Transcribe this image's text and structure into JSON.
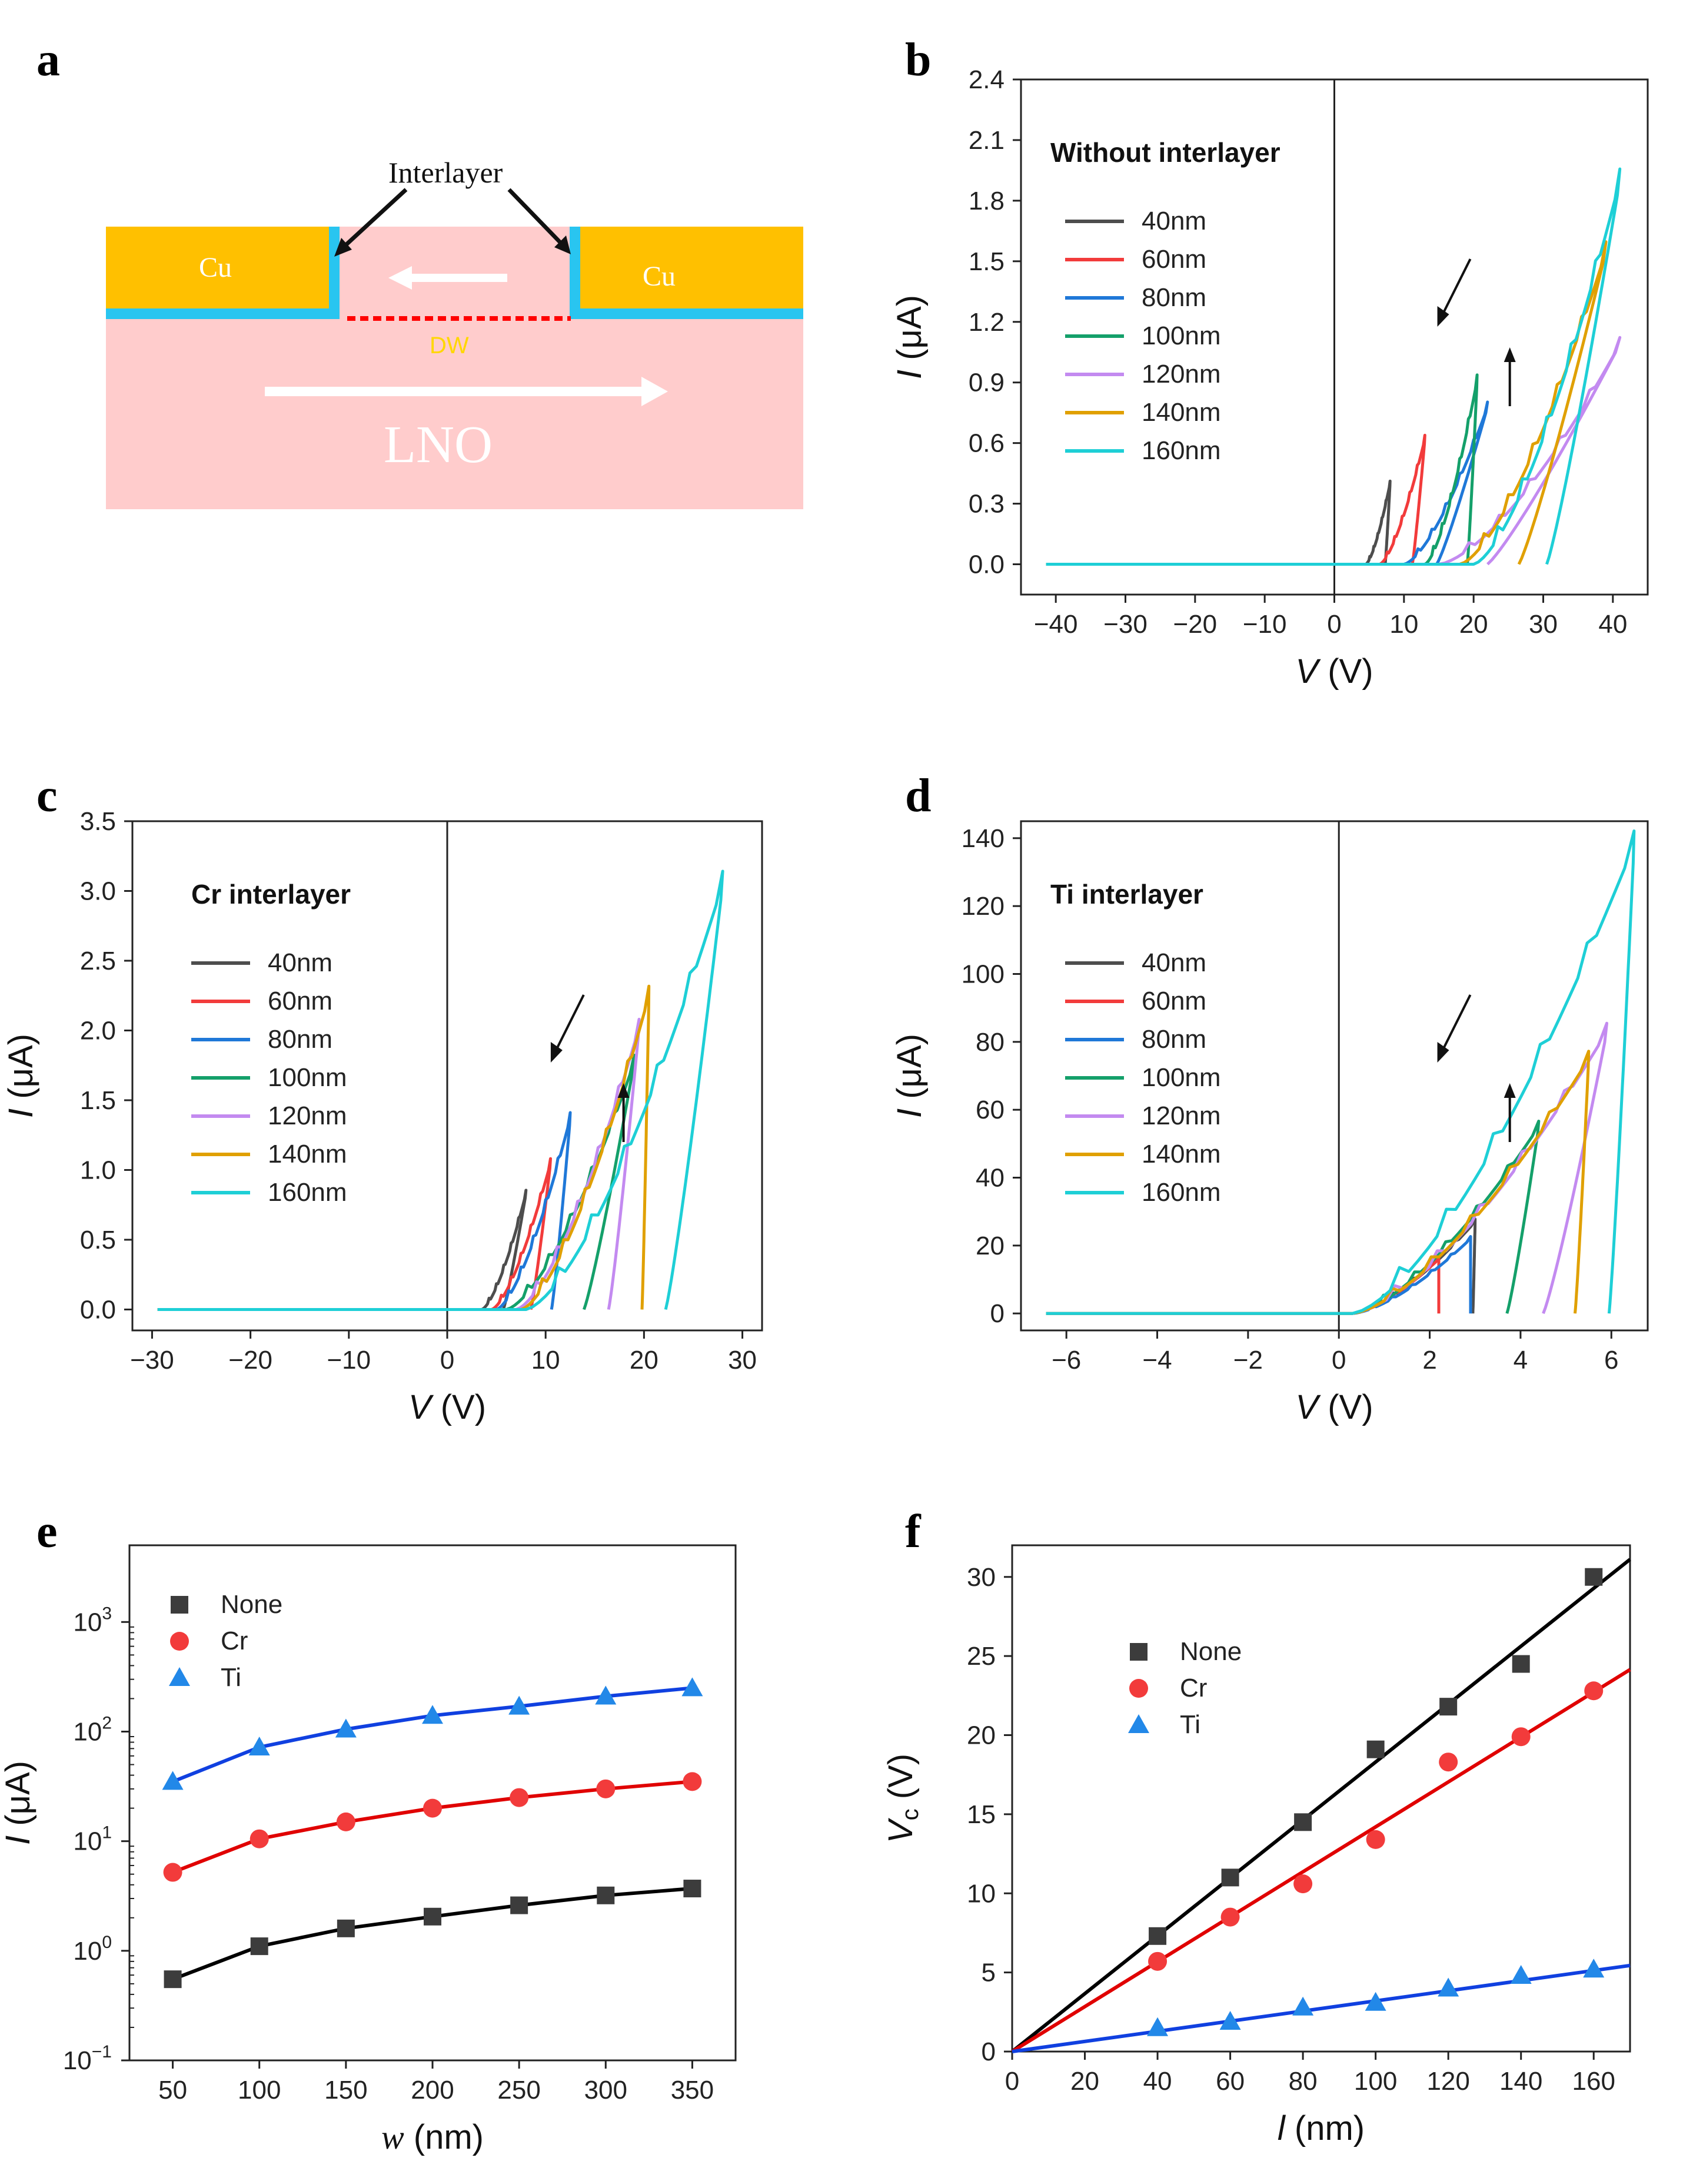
{
  "panel_labels": [
    "a",
    "b",
    "c",
    "d",
    "e",
    "f"
  ],
  "schematic": {
    "interlayer_label": "Interlayer",
    "left_electrode": "Cu",
    "right_electrode": "Cu",
    "dw_label": "DW",
    "substrate_label": "LNO",
    "colors": {
      "cu": "#FFC000",
      "interlayer": "#29C5F0",
      "lno": "#FFCCCC",
      "dw": "#FF0000",
      "dw_text": "#FFD700"
    }
  },
  "series_colors": {
    "40nm": "#4D4D4D",
    "60nm": "#F23B3B",
    "80nm": "#1F78D8",
    "100nm": "#14A06A",
    "120nm": "#C38AF0",
    "140nm": "#E0A000",
    "160nm": "#1ECFD6"
  },
  "chart_data": [
    {
      "panel": "b",
      "type": "line",
      "inset_title": "Without interlayer",
      "xlabel": "V (V)",
      "ylabel": "I (μA)",
      "xlim": [
        -45,
        45
      ],
      "ylim": [
        -0.15,
        2.4
      ],
      "xticks": [
        -40,
        -30,
        -20,
        -10,
        0,
        10,
        20,
        30,
        40
      ],
      "yticks": [
        0.0,
        0.3,
        0.6,
        0.9,
        1.2,
        1.5,
        1.8,
        2.1,
        2.4
      ],
      "ytick_labels": [
        "0.0",
        "0.3",
        "0.6",
        "0.9",
        "1.2",
        "1.5",
        "1.8",
        "2.1",
        "2.4"
      ],
      "series": [
        {
          "name": "40nm",
          "vstart": 4.5,
          "vmax": 8,
          "imax": 0.4,
          "vc": 7.3
        },
        {
          "name": "60nm",
          "vstart": 6.5,
          "vmax": 13,
          "imax": 0.62,
          "vc": 11.2
        },
        {
          "name": "80nm",
          "vstart": 10,
          "vmax": 22,
          "imax": 0.78,
          "vc": 14.7
        },
        {
          "name": "100nm",
          "vstart": 13,
          "vmax": 20.5,
          "imax": 0.91,
          "vc": 19.1
        },
        {
          "name": "120nm",
          "vstart": 15,
          "vmax": 41,
          "imax": 1.09,
          "vc": 22
        },
        {
          "name": "140nm",
          "vstart": 18,
          "vmax": 39,
          "imax": 1.55,
          "vc": 26.5
        },
        {
          "name": "160nm",
          "vstart": 20,
          "vmax": 41,
          "imax": 1.9,
          "vc": 30.5
        }
      ]
    },
    {
      "panel": "c",
      "type": "line",
      "inset_title": "Cr interlayer",
      "xlabel": "V (V)",
      "ylabel": "I (μA)",
      "xlim": [
        -32,
        32
      ],
      "ylim": [
        -0.15,
        3.5
      ],
      "xticks": [
        -30,
        -20,
        -10,
        0,
        10,
        20,
        30
      ],
      "yticks": [
        0.0,
        0.5,
        1.0,
        1.5,
        2.0,
        2.5,
        3.0,
        3.5
      ],
      "ytick_labels": [
        "0.0",
        "0.5",
        "1.0",
        "1.5",
        "2.0",
        "2.5",
        "3.0",
        "3.5"
      ],
      "series": [
        {
          "name": "40nm",
          "vstart": 3.5,
          "vmax": 8,
          "imax": 0.83,
          "vc": 5.7
        },
        {
          "name": "60nm",
          "vstart": 4.5,
          "vmax": 10.5,
          "imax": 1.05,
          "vc": 8.5
        },
        {
          "name": "80nm",
          "vstart": 5,
          "vmax": 12.5,
          "imax": 1.37,
          "vc": 10.6
        },
        {
          "name": "100nm",
          "vstart": 6,
          "vmax": 19,
          "imax": 1.77,
          "vc": 13.9
        },
        {
          "name": "120nm",
          "vstart": 7,
          "vmax": 19.5,
          "imax": 2.02,
          "vc": 16.4
        },
        {
          "name": "140nm",
          "vstart": 7.5,
          "vmax": 20.5,
          "imax": 2.25,
          "vc": 19.8
        },
        {
          "name": "160nm",
          "vstart": 8,
          "vmax": 28,
          "imax": 3.05,
          "vc": 22.2
        }
      ]
    },
    {
      "panel": "d",
      "type": "line",
      "inset_title": "Ti interlayer",
      "xlabel": "V (V)",
      "ylabel": "I (μA)",
      "xlim": [
        -7,
        6.8
      ],
      "ylim": [
        -5,
        145
      ],
      "xticks": [
        -6,
        -4,
        -2,
        0,
        2,
        4,
        6
      ],
      "yticks": [
        0,
        20,
        40,
        60,
        80,
        100,
        120,
        140
      ],
      "ytick_labels": [
        "0",
        "20",
        "40",
        "60",
        "80",
        "100",
        "120",
        "140"
      ],
      "series": [
        {
          "name": "40nm",
          "vstart": 0.3,
          "vmax": 3,
          "imax": 27,
          "vc": 2.95
        },
        {
          "name": "60nm",
          "vstart": 0.3,
          "vmax": 2.2,
          "imax": 16,
          "vc": 2.2
        },
        {
          "name": "80nm",
          "vstart": 0.3,
          "vmax": 2.9,
          "imax": 22,
          "vc": 2.9
        },
        {
          "name": "100nm",
          "vstart": 0.3,
          "vmax": 4.4,
          "imax": 55,
          "vc": 3.7
        },
        {
          "name": "120nm",
          "vstart": 0.3,
          "vmax": 5.9,
          "imax": 83,
          "vc": 4.5
        },
        {
          "name": "140nm",
          "vstart": 0.3,
          "vmax": 5.5,
          "imax": 75,
          "vc": 5.2
        },
        {
          "name": "160nm",
          "vstart": 0.3,
          "vmax": 6.5,
          "imax": 138,
          "vc": 5.95
        }
      ]
    },
    {
      "panel": "e",
      "type": "scatter",
      "yscale": "log",
      "xlabel": "w (nm)",
      "ylabel": "I (μA)",
      "xlim": [
        25,
        375
      ],
      "ylim_exp": [
        -1,
        3.7
      ],
      "xticks": [
        50,
        100,
        150,
        200,
        250,
        300,
        350
      ],
      "yticks_exp": [
        -1,
        0,
        1,
        2,
        3
      ],
      "x": [
        50,
        100,
        150,
        200,
        250,
        300,
        350
      ],
      "series": [
        {
          "name": "None",
          "marker": "square",
          "color": "#3C3C3C",
          "fit_color": "#000000",
          "values": [
            0.55,
            1.1,
            1.6,
            2.05,
            2.6,
            3.2,
            3.7
          ]
        },
        {
          "name": "Cr",
          "marker": "circle",
          "color": "#F23B3B",
          "fit_color": "#E00000",
          "values": [
            5.2,
            10.5,
            15,
            20,
            25,
            30,
            35
          ]
        },
        {
          "name": "Ti",
          "marker": "triangle",
          "color": "#2288E8",
          "fit_color": "#1040E0",
          "values": [
            35,
            72,
            105,
            140,
            170,
            210,
            250
          ]
        }
      ]
    },
    {
      "panel": "f",
      "type": "scatter",
      "xlabel": "l  (nm)",
      "ylabel": "Vc (V)",
      "xlim": [
        0,
        170
      ],
      "ylim": [
        0,
        32
      ],
      "xticks": [
        0,
        20,
        40,
        60,
        80,
        100,
        120,
        140,
        160
      ],
      "yticks": [
        0,
        5,
        10,
        15,
        20,
        25,
        30
      ],
      "x": [
        40,
        60,
        80,
        100,
        120,
        140,
        160
      ],
      "series": [
        {
          "name": "None",
          "marker": "square",
          "color": "#3C3C3C",
          "fit_color": "#000000",
          "values": [
            7.3,
            11,
            14.5,
            19.1,
            21.8,
            24.5,
            30
          ],
          "slope": 0.183
        },
        {
          "name": "Cr",
          "marker": "circle",
          "color": "#F23B3B",
          "fit_color": "#E00000",
          "values": [
            5.7,
            8.5,
            10.6,
            13.4,
            18.3,
            19.9,
            22.8
          ],
          "slope": 0.142
        },
        {
          "name": "Ti",
          "marker": "triangle",
          "color": "#2288E8",
          "fit_color": "#1040E0",
          "values": [
            1.5,
            1.9,
            2.8,
            3.1,
            4,
            4.8,
            5.2
          ],
          "slope": 0.032
        }
      ]
    }
  ]
}
